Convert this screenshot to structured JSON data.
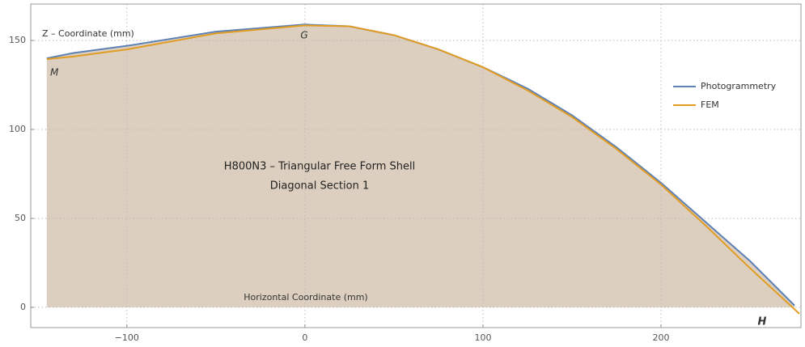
{
  "chart_data": {
    "type": "line",
    "title": [
      "H800N3 – Triangular Free Form Shell",
      "Diagonal Section 1"
    ],
    "y_label": "Z – Coordinate (mm)",
    "x_label": "Horizontal Coordinate (mm)",
    "annotations": [
      "M",
      "G",
      "H"
    ],
    "xlim": [
      -154,
      278.6
    ],
    "ylim": [
      -11.4,
      170.5
    ],
    "xticks": [
      {
        "value": -100,
        "label": "−100"
      },
      0,
      100,
      200
    ],
    "yticks": [
      0,
      50,
      100,
      150
    ],
    "grid": true,
    "fill_first_series": "#dccfbf",
    "legend": "right",
    "series": [
      {
        "name": "Photogrammetry",
        "color": "#5e81b5",
        "x": [
          -145,
          -130,
          -100,
          -50,
          0,
          25,
          50,
          75,
          100,
          125,
          150,
          175,
          200,
          225,
          250,
          275
        ],
        "values": [
          140,
          143,
          147,
          155,
          159,
          158,
          153,
          145,
          135,
          123,
          108,
          90,
          70,
          48,
          26,
          1
        ]
      },
      {
        "name": "FEM",
        "color": "#e19c24",
        "x": [
          -145,
          -130,
          -100,
          -50,
          0,
          25,
          50,
          75,
          100,
          125,
          150,
          175,
          200,
          225,
          250,
          277.7
        ],
        "values": [
          139.5,
          141,
          145,
          154,
          158.5,
          158,
          153,
          145,
          135,
          122,
          107,
          89,
          69,
          46,
          22,
          -3.6
        ]
      }
    ]
  }
}
